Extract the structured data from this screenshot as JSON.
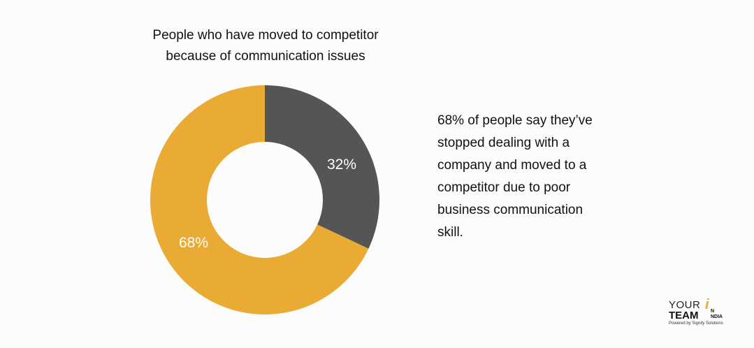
{
  "chart_data": {
    "type": "pie",
    "title_lines": [
      "People who have moved to competitor",
      "because of communication issues"
    ],
    "slices": [
      {
        "label": "32%",
        "value": 32,
        "color": "#555555"
      },
      {
        "label": "68%",
        "value": 68,
        "color": "#eaab34"
      }
    ],
    "donut": true,
    "start_angle": "top (12 o'clock), clockwise"
  },
  "description_lines": [
    "68% of people say they’ve",
    "stopped dealing with a",
    "company and moved to a",
    "competitor due to poor",
    "business communication",
    "skill."
  ],
  "logo": {
    "line1": "YOUR",
    "line2": "TEAM",
    "i_mark": "i",
    "in_top": "N",
    "in_bottom": "NDIA",
    "powered": "Powered by Signity Solutions"
  }
}
